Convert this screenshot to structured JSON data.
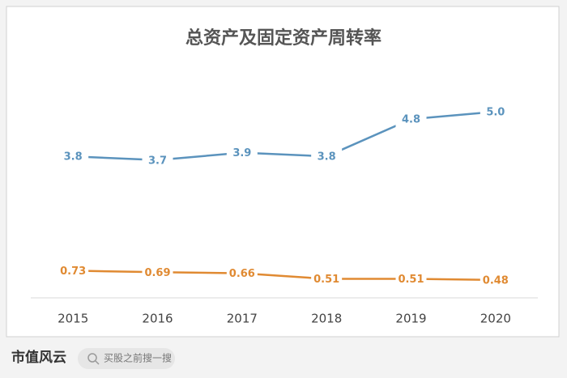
{
  "chart_data": {
    "type": "line",
    "title": "总资产及固定资产周转率",
    "categories": [
      "2015",
      "2016",
      "2017",
      "2018",
      "2019",
      "2020"
    ],
    "series": [
      {
        "color": "#5b93bd",
        "values": [
          3.8,
          3.7,
          3.9,
          3.8,
          4.8,
          5.0
        ],
        "value_labels": [
          "3.8",
          "3.7",
          "3.9",
          "3.8",
          "4.8",
          "5.0"
        ]
      },
      {
        "color": "#e08a32",
        "values": [
          0.73,
          0.69,
          0.66,
          0.51,
          0.51,
          0.48
        ]
      }
    ],
    "ylim": [
      0,
      6
    ]
  },
  "footer": {
    "brand": "市值风云",
    "search": "买股之前搜一搜"
  }
}
